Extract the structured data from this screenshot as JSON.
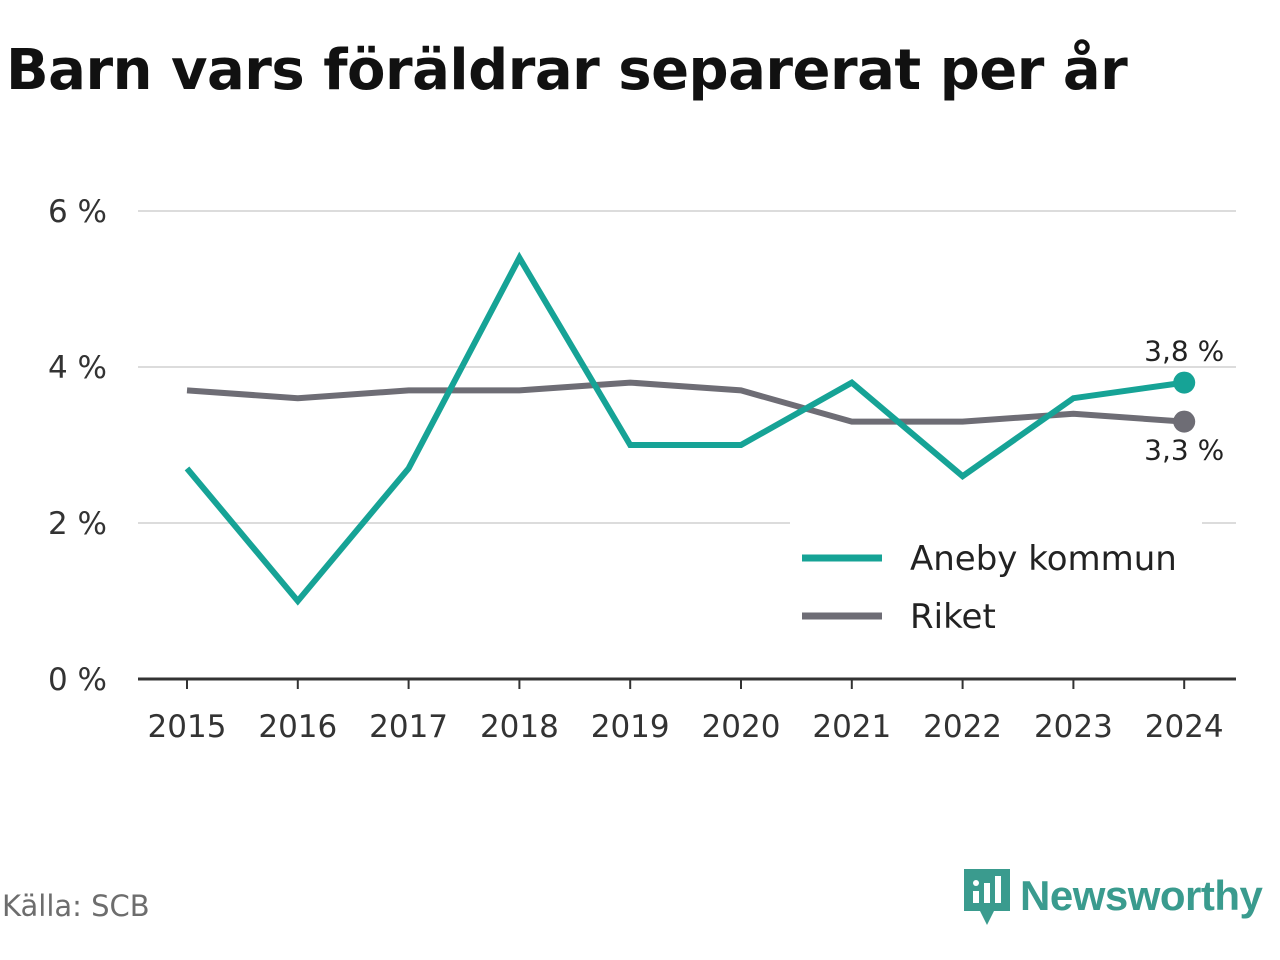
{
  "title": "Barn vars föräldrar separerat per år",
  "source": "Källa: SCB",
  "brand": "Newsworthy",
  "chart_data": {
    "type": "line",
    "title": "Barn vars föräldrar separerat per år",
    "x": [
      "2015",
      "2016",
      "2017",
      "2018",
      "2019",
      "2020",
      "2021",
      "2022",
      "2023",
      "2024"
    ],
    "ylim": [
      0,
      6
    ],
    "yticks": [
      0,
      2,
      4,
      6
    ],
    "ytick_labels": [
      "0 %",
      "2 %",
      "4 %",
      "6 %"
    ],
    "grid": true,
    "legend_position": "bottom-right",
    "series": [
      {
        "name": "Aneby kommun",
        "color": "#16a396",
        "values": [
          2.7,
          1.0,
          2.7,
          5.4,
          3.0,
          3.0,
          3.8,
          2.6,
          3.6,
          3.8
        ],
        "end_label": "3,8 %"
      },
      {
        "name": "Riket",
        "color": "#6e6d75",
        "values": [
          3.7,
          3.6,
          3.7,
          3.7,
          3.8,
          3.7,
          3.3,
          3.3,
          3.4,
          3.3
        ],
        "end_label": "3,3 %"
      }
    ]
  }
}
